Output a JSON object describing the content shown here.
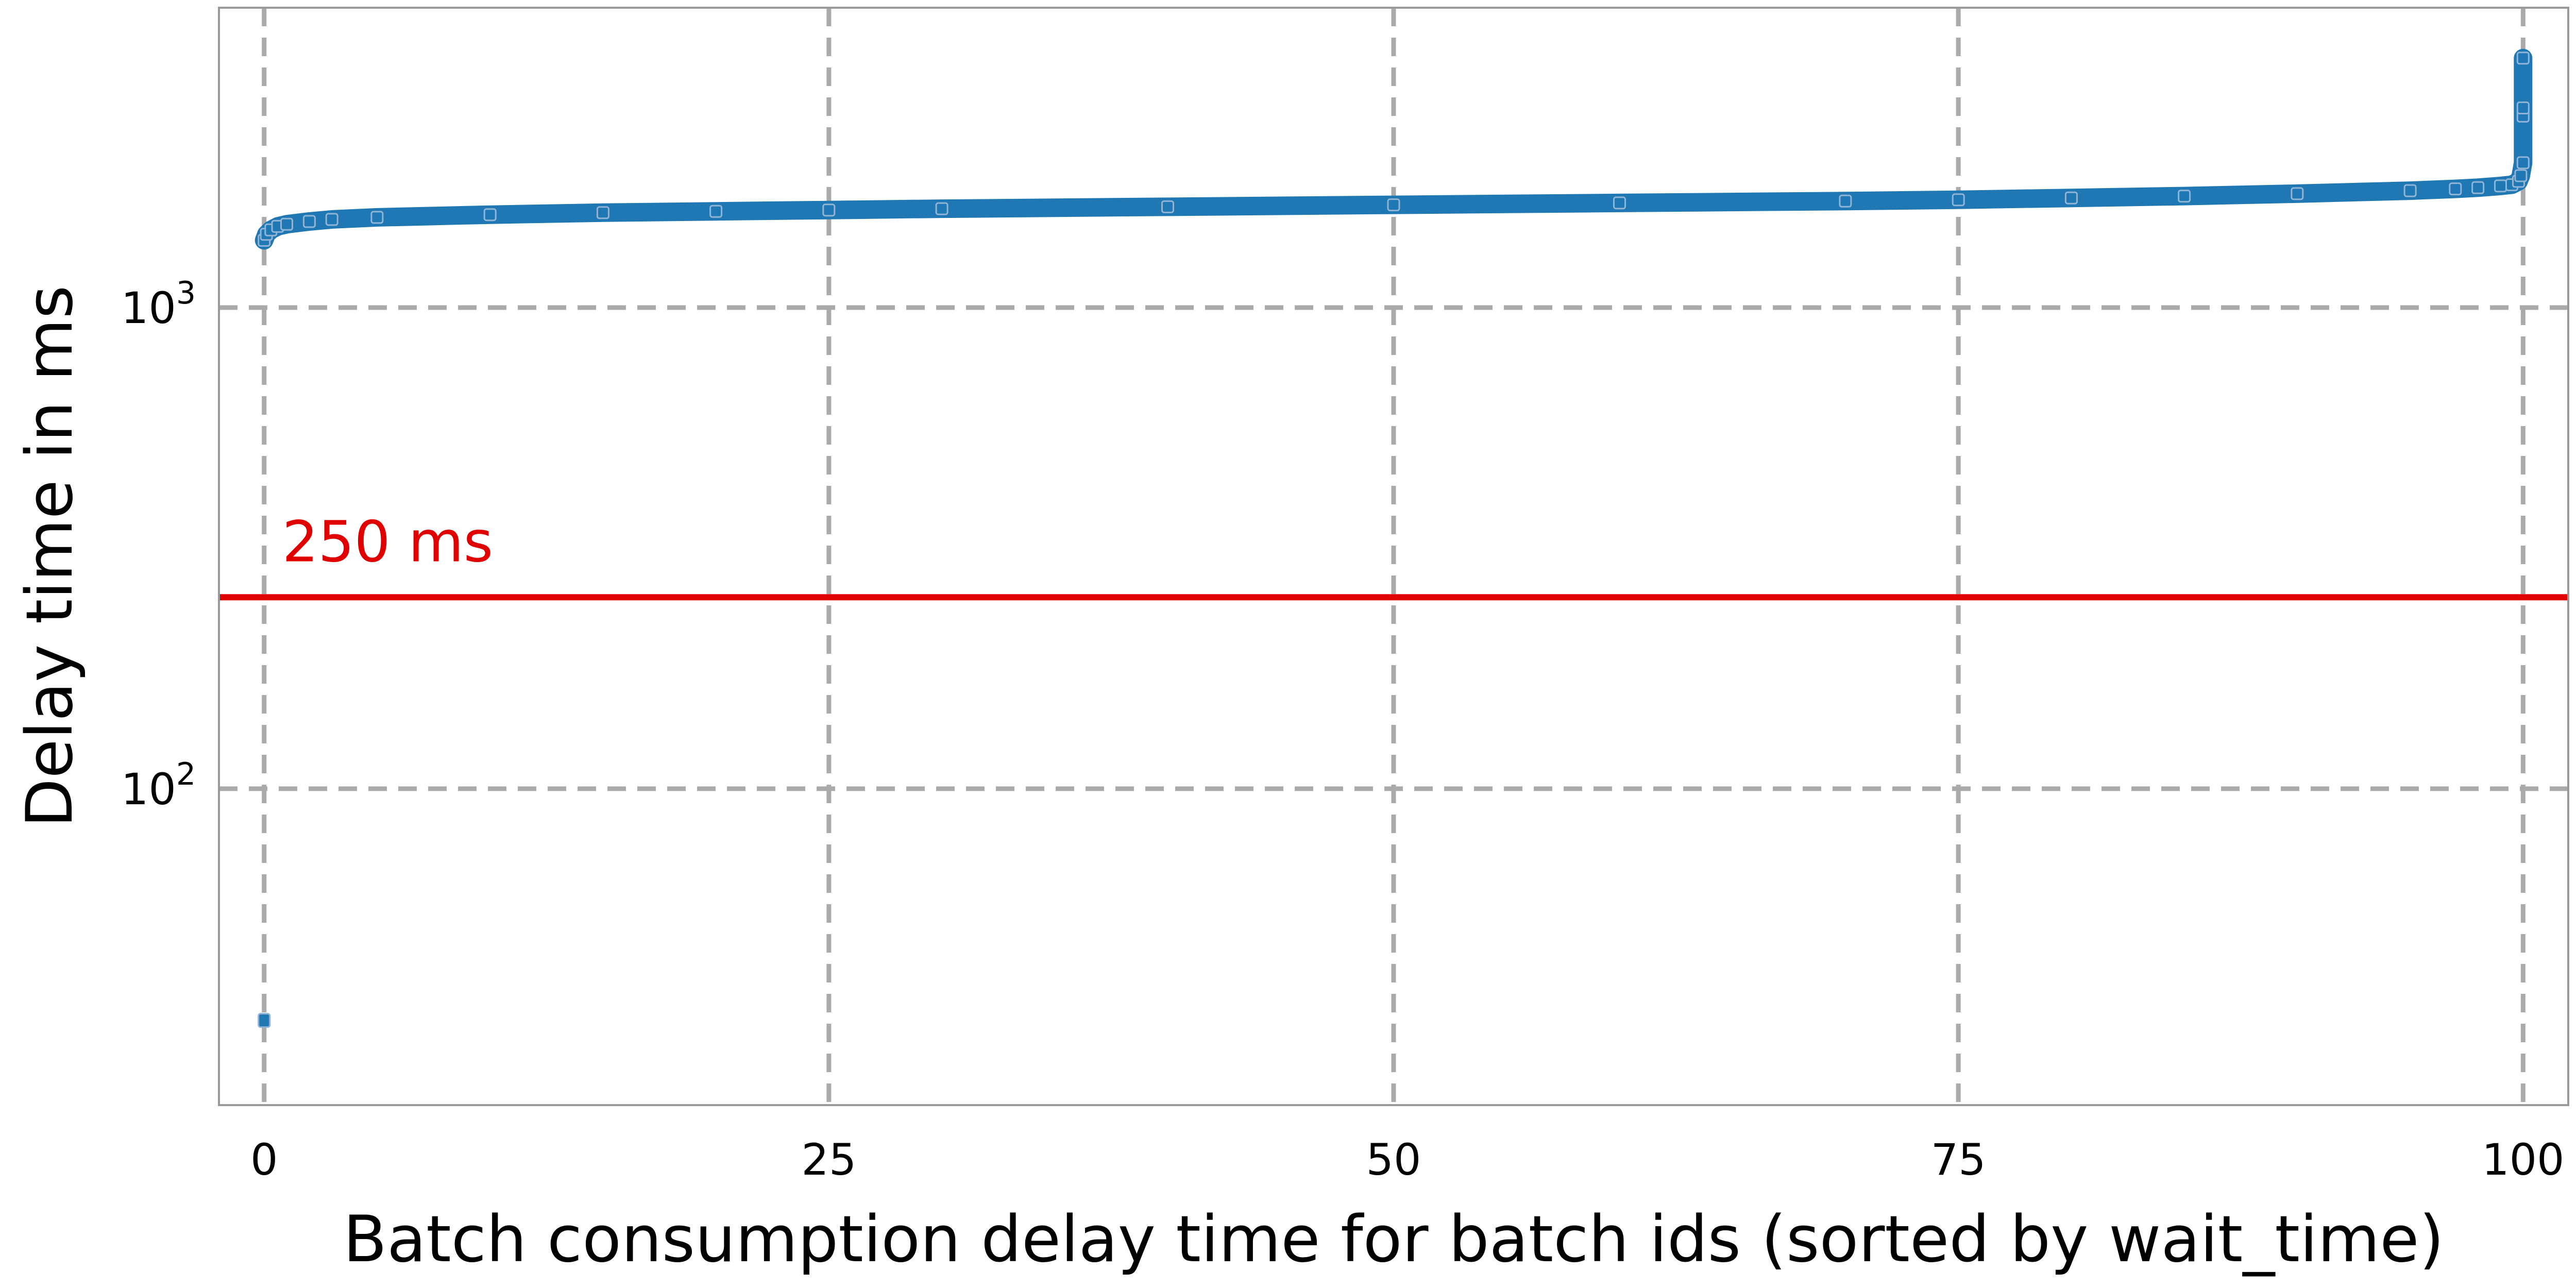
{
  "chart_data": {
    "type": "scatter",
    "title": "",
    "xlabel": "Batch consumption delay time for batch ids  (sorted by wait_time)",
    "ylabel": "Delay time in ms",
    "xlim": [
      -2,
      102
    ],
    "ylim": [
      22,
      4200
    ],
    "yscale": "log",
    "grid": true,
    "grid_style": "dashed",
    "x_ticks": [
      {
        "value": 0,
        "label": "0"
      },
      {
        "value": 25,
        "label": "25"
      },
      {
        "value": 50,
        "label": "50"
      },
      {
        "value": 75,
        "label": "75"
      },
      {
        "value": 100,
        "label": "100"
      }
    ],
    "y_ticks": [
      {
        "value": 100,
        "base": "10",
        "exp": "2"
      },
      {
        "value": 1000,
        "base": "10",
        "exp": "3"
      }
    ],
    "series": [
      {
        "color": "#1f77b4",
        "x": [
          0,
          0.1,
          0.3,
          0.6,
          1,
          2,
          3,
          5,
          10,
          15,
          20,
          25,
          30,
          40,
          50,
          60,
          70,
          75,
          80,
          85,
          90,
          95,
          97,
          98,
          99,
          99.5,
          99.8,
          99.9,
          100,
          100,
          100,
          100
        ],
        "y": [
          1380,
          1420,
          1450,
          1475,
          1490,
          1510,
          1525,
          1540,
          1560,
          1575,
          1585,
          1595,
          1605,
          1620,
          1635,
          1650,
          1665,
          1675,
          1690,
          1705,
          1725,
          1750,
          1765,
          1775,
          1790,
          1800,
          1830,
          1880,
          2000,
          2500,
          2600,
          3300
        ],
        "outliers": [
          {
            "x": 0,
            "y": 33
          }
        ]
      }
    ],
    "reference_lines": [
      {
        "y": 250,
        "color": "#e00000",
        "label": "250 ms"
      }
    ]
  },
  "colors": {
    "series": "#1f77b4",
    "reference": "#e00000",
    "grid": "#aaaaaa",
    "frame": "#999999"
  }
}
